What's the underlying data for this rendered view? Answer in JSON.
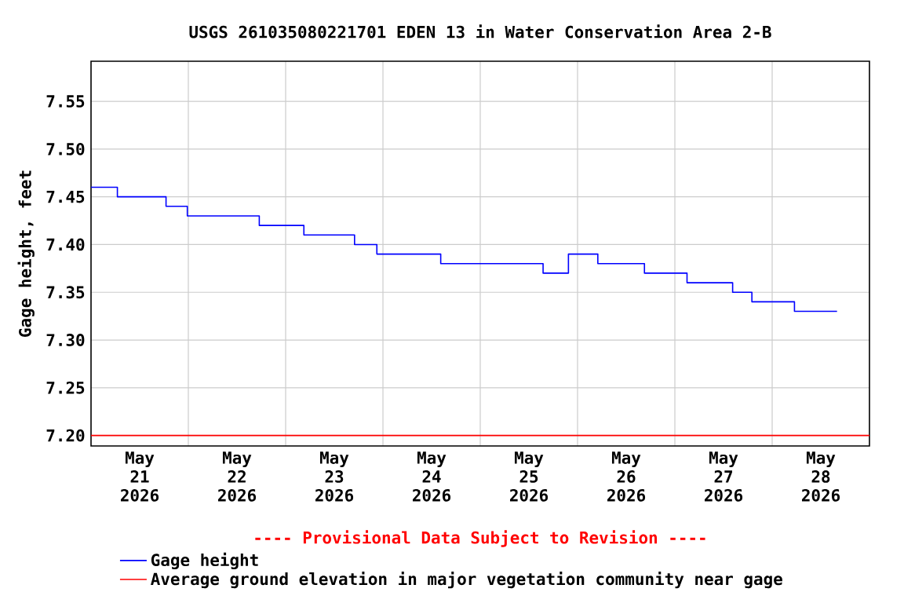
{
  "chart_data": {
    "type": "step",
    "title": "USGS 261035080221701 EDEN 13 in Water Conservation Area 2-B",
    "ylabel": "Gage height, feet",
    "annotations": [
      "---- Provisional Data Subject to Revision ----"
    ],
    "xlim": [
      "2026-05-21T00:00",
      "2026-05-29T00:00"
    ],
    "xticks": [
      {
        "value": "2026-05-21T12:00",
        "label": "May 21 2026"
      },
      {
        "value": "2026-05-22T12:00",
        "label": "May 22 2026"
      },
      {
        "value": "2026-05-23T12:00",
        "label": "May 23 2026"
      },
      {
        "value": "2026-05-24T12:00",
        "label": "May 24 2026"
      },
      {
        "value": "2026-05-25T12:00",
        "label": "May 25 2026"
      },
      {
        "value": "2026-05-26T12:00",
        "label": "May 26 2026"
      },
      {
        "value": "2026-05-27T12:00",
        "label": "May 27 2026"
      },
      {
        "value": "2026-05-28T12:00",
        "label": "May 28 2026"
      },
      {
        "value": "2026-05-22T00:00",
        "label": null
      },
      {
        "value": "2026-05-23T00:00",
        "label": null
      },
      {
        "value": "2026-05-24T00:00",
        "label": null
      },
      {
        "value": "2026-05-25T00:00",
        "label": null
      },
      {
        "value": "2026-05-26T00:00",
        "label": null
      },
      {
        "value": "2026-05-27T00:00",
        "label": null
      },
      {
        "value": "2026-05-28T00:00",
        "label": null
      }
    ],
    "ylim": [
      7.189,
      7.592
    ],
    "yticks": [
      {
        "value": 7.2,
        "label": "7.20"
      },
      {
        "value": 7.25,
        "label": "7.25"
      },
      {
        "value": 7.3,
        "label": "7.30"
      },
      {
        "value": 7.35,
        "label": "7.35"
      },
      {
        "value": 7.4,
        "label": "7.40"
      },
      {
        "value": 7.45,
        "label": "7.45"
      },
      {
        "value": 7.5,
        "label": "7.50"
      },
      {
        "value": 7.55,
        "label": "7.55"
      }
    ],
    "series": [
      {
        "name": "Gage height",
        "color": "#0000ff",
        "x": [
          "2026-05-21T00:00",
          "2026-05-21T06:30",
          "2026-05-21T18:30",
          "2026-05-21T23:45",
          "2026-05-22T17:30",
          "2026-05-23T04:30",
          "2026-05-23T17:00",
          "2026-05-23T22:30",
          "2026-05-24T14:15",
          "2026-05-25T15:30",
          "2026-05-25T21:45",
          "2026-05-26T05:00",
          "2026-05-26T16:30",
          "2026-05-27T03:00",
          "2026-05-27T14:15",
          "2026-05-27T19:00",
          "2026-05-28T05:30",
          "2026-05-28T16:00"
        ],
        "values": [
          7.46,
          7.45,
          7.44,
          7.43,
          7.42,
          7.41,
          7.4,
          7.39,
          7.38,
          7.37,
          7.39,
          7.38,
          7.37,
          7.36,
          7.35,
          7.34,
          7.33,
          7.33
        ]
      }
    ],
    "ref_lines": [
      {
        "axis": "y",
        "value": 7.2,
        "label": "Average ground elevation in major vegetation community near gage",
        "color": "#ff0000"
      }
    ],
    "grid": true,
    "legend": "bottom"
  }
}
